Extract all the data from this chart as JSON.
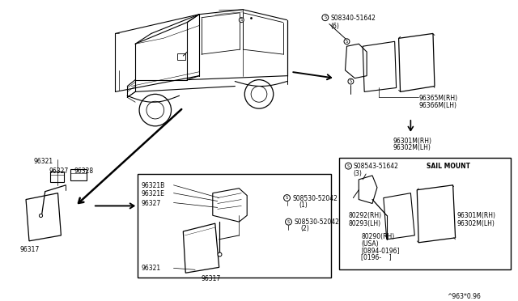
{
  "bg_color": "#ffffff",
  "fig_width": 6.4,
  "fig_height": 3.72,
  "watermark": "^963*0.96",
  "lc": "#000000",
  "fs": 5.5,
  "screw_top_label": "S08340-51642\n(6)",
  "tr_label1": "96365M(RH)",
  "tr_label2": "96366M(LH)",
  "tr_label3": "96301M(RH)",
  "tr_label4": "96302M(LH)",
  "ll_label_96321": "96321",
  "ll_label_96327": "96327",
  "ll_label_96328": "96328",
  "ll_label_96317": "96317",
  "db_label_96321B": "96321B",
  "db_label_96321E": "96321E",
  "db_label_96327": "96327",
  "db_label_96321": "96321",
  "db_label_96317": "96317",
  "db_screw1": "S08530-52042",
  "db_screw1b": "(1)",
  "db_screw2": "S08530-52042",
  "db_screw2b": "(2)",
  "sail_screw_label": "S08543-51642",
  "sail_screw_sub": "(3)",
  "sail_mount_label": "SAIL MOUNT",
  "sail_80292": "80292(RH)",
  "sail_80293": "80293(LH)",
  "sail_80290": "80290(RH)",
  "sail_80290b": "(USA)",
  "sail_80290c": "[0894-0196]",
  "sail_80290d": "[0196-    ]",
  "sail_96301": "96301M(RH)",
  "sail_96302": "96302M(LH)"
}
